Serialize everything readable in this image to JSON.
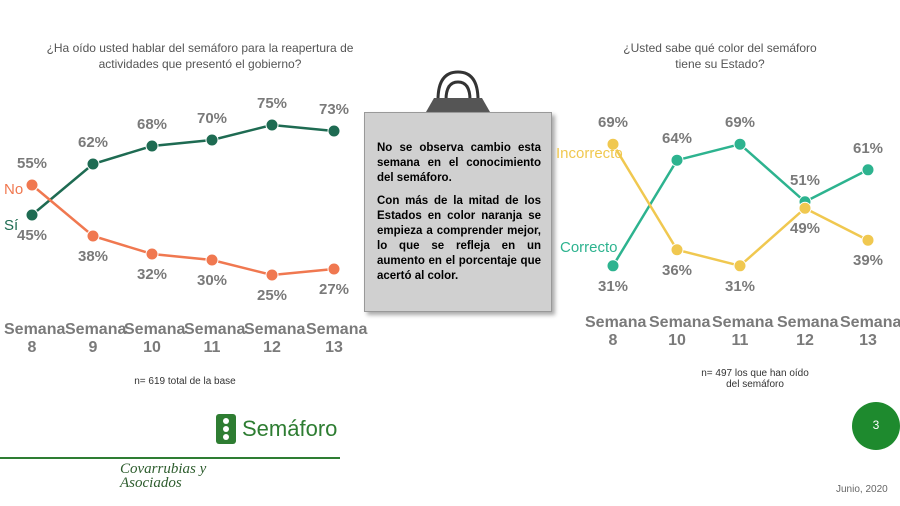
{
  "chart_data": [
    {
      "type": "line",
      "title": "¿Ha oído usted hablar del semáforo para la reapertura de actividades que presentó el gobierno?",
      "categories": [
        "Semana 8",
        "Semana 9",
        "Semana 10",
        "Semana 11",
        "Semana 12",
        "Semana 13"
      ],
      "series": [
        {
          "name": "Sí",
          "color": "#1e6b52",
          "values": [
            45,
            62,
            68,
            70,
            75,
            73
          ],
          "value_labels": [
            "45%",
            "62%",
            "68%",
            "70%",
            "75%",
            "73%"
          ]
        },
        {
          "name": "No",
          "color": "#f07850",
          "values": [
            55,
            38,
            32,
            30,
            25,
            27
          ],
          "value_labels": [
            "55%",
            "38%",
            "32%",
            "30%",
            "25%",
            "27%"
          ]
        }
      ],
      "note": "n= 619 total de la base"
    },
    {
      "type": "line",
      "title": "¿Usted sabe qué color del semáforo tiene su Estado?",
      "categories": [
        "Semana 8",
        "Semana 10",
        "Semana 11",
        "Semana 12",
        "Semana 13"
      ],
      "series": [
        {
          "name": "Correcto",
          "color": "#2db38f",
          "values": [
            31,
            64,
            69,
            51,
            61
          ],
          "value_labels": [
            "31%",
            "64%",
            "69%",
            "51%",
            "61%"
          ]
        },
        {
          "name": "Incorrecto",
          "color": "#f0c850",
          "values": [
            69,
            36,
            31,
            49,
            39
          ],
          "value_labels": [
            "69%",
            "36%",
            "31%",
            "49%",
            "39%"
          ]
        }
      ],
      "note": "n= 497 los que han oído del semáforo"
    }
  ],
  "callout": {
    "paragraphs": [
      "No se observa cambio esta semana en el conocimiento del semáforo.",
      "Con más de la mitad de los Estados en color naranja se empieza a comprender mejor, lo que se refleja en un aumento en el porcentaje que acertó al color."
    ]
  },
  "footer": {
    "brand": "Semáforo",
    "company": "Covarrubias y Asociados",
    "date": "Junio, 2020",
    "page": "3"
  }
}
